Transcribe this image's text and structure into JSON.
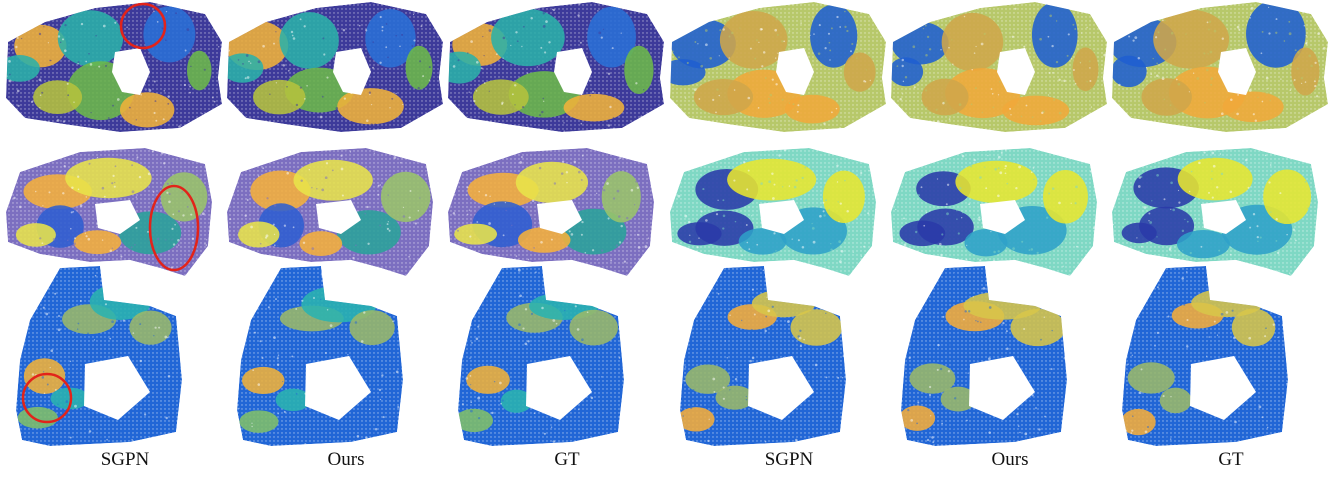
{
  "figure": {
    "columns": [
      {
        "caption": "SGPN",
        "coloring": "instance"
      },
      {
        "caption": "Ours",
        "coloring": "instance"
      },
      {
        "caption": "GT",
        "coloring": "instance"
      },
      {
        "caption": "SGPN",
        "coloring": "semantic"
      },
      {
        "caption": "Ours",
        "coloring": "semantic"
      },
      {
        "caption": "GT",
        "coloring": "semantic"
      }
    ],
    "rows": [
      {
        "scene": "scene-1"
      },
      {
        "scene": "scene-2"
      },
      {
        "scene": "scene-3"
      }
    ],
    "highlight_color": "#e2231a",
    "palettes": {
      "instance_row1": {
        "base": "#3d3a9a",
        "accents": [
          "#f0b23a",
          "#2bb0a8",
          "#6cb84a",
          "#2a6fd6",
          "#b5c23e"
        ]
      },
      "instance_row2": {
        "base": "#7c6fc0",
        "accents": [
          "#f5b03b",
          "#e8e44a",
          "#2aa39a",
          "#2f5fd0",
          "#9ac46a"
        ]
      },
      "instance_row3": {
        "base": "#2166d6",
        "accents": [
          "#9ab86a",
          "#2ab3b0",
          "#f0b23a",
          "#7fbf6a"
        ]
      },
      "semantic_row1": {
        "base": "#b7c86a",
        "accents": [
          "#1f5fd0",
          "#cfa64a",
          "#f0a93a"
        ]
      },
      "semantic_row2": {
        "base": "#7fd8c4",
        "accents": [
          "#2a3aa8",
          "#e8e630",
          "#2fa0c8"
        ]
      },
      "semantic_row3": {
        "base": "#2166d6",
        "accents": [
          "#f5ad3a",
          "#d7c64a",
          "#9ab86a"
        ]
      }
    }
  }
}
